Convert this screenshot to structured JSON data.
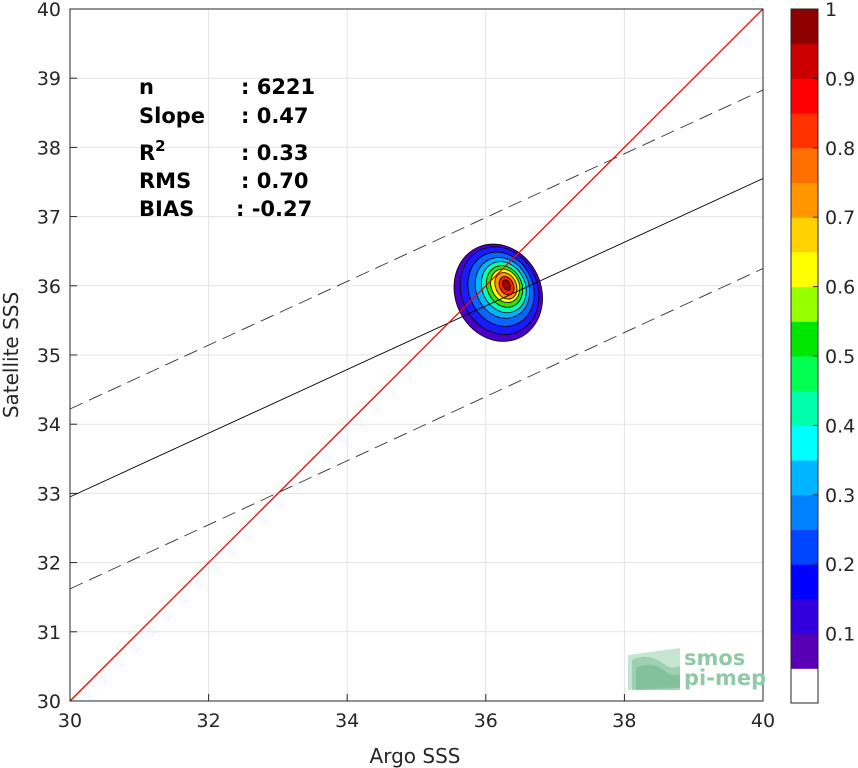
{
  "chart_data": {
    "type": "scatter",
    "subtype": "density-contour",
    "xlabel": "Argo SSS",
    "ylabel": "Satellite SSS",
    "xlim": [
      30,
      40
    ],
    "ylim": [
      30,
      40
    ],
    "xticks": [
      "30",
      "32",
      "34",
      "36",
      "38",
      "40"
    ],
    "yticks": [
      "30",
      "31",
      "32",
      "33",
      "34",
      "35",
      "36",
      "37",
      "38",
      "39",
      "40"
    ],
    "grid": true,
    "stats": [
      {
        "label": "n",
        "value": ": 6221"
      },
      {
        "label": "Slope",
        "value": ": 0.47"
      },
      {
        "label": "R",
        "sup": "2",
        "value": ": 0.33"
      },
      {
        "label": "RMS",
        "value": ": 0.70"
      },
      {
        "label": "BIAS",
        "value": ": -0.27"
      }
    ],
    "identity_line": {
      "x": [
        30,
        40
      ],
      "y": [
        30,
        40
      ],
      "color": "#ff0000"
    },
    "regression_line": {
      "x": [
        30,
        40
      ],
      "y": [
        32.95,
        37.55
      ],
      "color": "#000000"
    },
    "regression_bounds": [
      {
        "x": [
          30,
          40
        ],
        "y": [
          34.22,
          38.83
        ]
      },
      {
        "x": [
          30,
          40
        ],
        "y": [
          31.62,
          36.25
        ]
      }
    ],
    "density_peak": {
      "x": 36.3,
      "y": 36.0
    },
    "density_levels": [
      {
        "level": 0.05,
        "rx": 0.62,
        "ry": 0.72,
        "cx": 36.18,
        "cy": 35.9,
        "color": "#4a00c8"
      },
      {
        "level": 0.15,
        "rx": 0.55,
        "ry": 0.65,
        "cx": 36.2,
        "cy": 35.93,
        "color": "#1a1aff"
      },
      {
        "level": 0.25,
        "rx": 0.46,
        "ry": 0.55,
        "cx": 36.22,
        "cy": 35.95,
        "color": "#0a64ff"
      },
      {
        "level": 0.35,
        "rx": 0.38,
        "ry": 0.45,
        "cx": 36.24,
        "cy": 35.97,
        "color": "#00b4ff"
      },
      {
        "level": 0.45,
        "rx": 0.31,
        "ry": 0.38,
        "cx": 36.26,
        "cy": 35.98,
        "color": "#00ffb4"
      },
      {
        "level": 0.55,
        "rx": 0.25,
        "ry": 0.31,
        "cx": 36.27,
        "cy": 35.99,
        "color": "#3cdc00"
      },
      {
        "level": 0.65,
        "rx": 0.2,
        "ry": 0.25,
        "cx": 36.28,
        "cy": 36.0,
        "color": "#ffff00"
      },
      {
        "level": 0.75,
        "rx": 0.15,
        "ry": 0.2,
        "cx": 36.29,
        "cy": 36.0,
        "color": "#ff9600"
      },
      {
        "level": 0.85,
        "rx": 0.1,
        "ry": 0.14,
        "cx": 36.3,
        "cy": 36.0,
        "color": "#ff1e00"
      },
      {
        "level": 0.95,
        "rx": 0.05,
        "ry": 0.08,
        "cx": 36.3,
        "cy": 36.01,
        "color": "#a00000"
      }
    ],
    "colorbar": {
      "range": [
        0,
        1
      ],
      "ticks": [
        "0.1",
        "0.2",
        "0.3",
        "0.4",
        "0.5",
        "0.6",
        "0.7",
        "0.8",
        "0.9",
        "1"
      ],
      "colors": [
        "#ffffff",
        "#5a00b4",
        "#3200dc",
        "#0000ff",
        "#0046ff",
        "#0082ff",
        "#00b4ff",
        "#00ffff",
        "#00ffaa",
        "#00ff50",
        "#00e600",
        "#96ff00",
        "#ffff00",
        "#ffd200",
        "#ff9600",
        "#ff6e00",
        "#ff3200",
        "#ff0000",
        "#cc0000",
        "#8c0000"
      ]
    },
    "logo": {
      "line1": "smos",
      "line2": "pi-mep"
    }
  }
}
